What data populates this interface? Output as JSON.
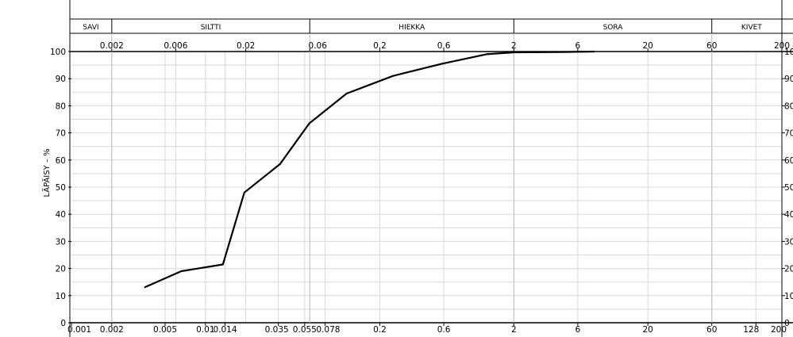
{
  "chart_data": {
    "type": "line",
    "ylabel": "LÄPÄISY – %",
    "scale_x": "log",
    "xlim": [
      0.001,
      200
    ],
    "ylim": [
      0,
      100
    ],
    "fractions": [
      {
        "label": "SAVI"
      },
      {
        "label": "SILTTI"
      },
      {
        "label": "HIEKKA"
      },
      {
        "label": "SORA"
      },
      {
        "label": "KIVET"
      }
    ],
    "top_ticks": [
      {
        "value": 0.002,
        "label": "0.002"
      },
      {
        "value": 0.006,
        "label": "0.006"
      },
      {
        "value": 0.02,
        "label": "0.02"
      },
      {
        "value": 0.06,
        "label": "0.06"
      },
      {
        "value": 0.2,
        "label": "0.2"
      },
      {
        "value": 0.6,
        "label": "0.6"
      },
      {
        "value": 2,
        "label": "2"
      },
      {
        "value": 6,
        "label": "6"
      },
      {
        "value": 20,
        "label": "20"
      },
      {
        "value": 60,
        "label": "60"
      },
      {
        "value": 200,
        "label": "200"
      }
    ],
    "bottom_ticks": [
      {
        "value": 0.001,
        "label": "0.001"
      },
      {
        "value": 0.002,
        "label": "0.002"
      },
      {
        "value": 0.005,
        "label": "0.005"
      },
      {
        "value": 0.01,
        "label": "0.01"
      },
      {
        "value": 0.014,
        "label": "0.014"
      },
      {
        "value": 0.035,
        "label": "0.035"
      },
      {
        "value": 0.055,
        "label": "0.055"
      },
      {
        "value": 0.078,
        "label": "0.078"
      },
      {
        "value": 0.2,
        "label": "0.2"
      },
      {
        "value": 0.6,
        "label": "0.6"
      },
      {
        "value": 2,
        "label": "2"
      },
      {
        "value": 6,
        "label": "6"
      },
      {
        "value": 20,
        "label": "20"
      },
      {
        "value": 60,
        "label": "60"
      },
      {
        "value": 128,
        "label": "128"
      },
      {
        "value": 200,
        "label": "200"
      }
    ],
    "y_ticks": [
      0,
      10,
      20,
      30,
      40,
      50,
      60,
      70,
      80,
      90,
      100
    ],
    "grid_x": [
      0.002,
      0.005,
      0.006,
      0.01,
      0.014,
      0.02,
      0.035,
      0.055,
      0.06,
      0.078,
      0.2,
      0.6,
      2,
      6,
      20,
      60,
      128,
      200
    ],
    "series": [
      {
        "x": [
          0.0035,
          0.0066,
          0.0135,
          0.0195,
          0.036,
          0.0595,
          0.113,
          0.25,
          0.58,
          1.25,
          2.0,
          4.5,
          8.0
        ],
        "y": [
          13,
          19,
          21.5,
          48,
          58.5,
          73.5,
          84.5,
          91,
          95.5,
          99,
          99.7,
          99.8,
          100
        ]
      }
    ]
  }
}
